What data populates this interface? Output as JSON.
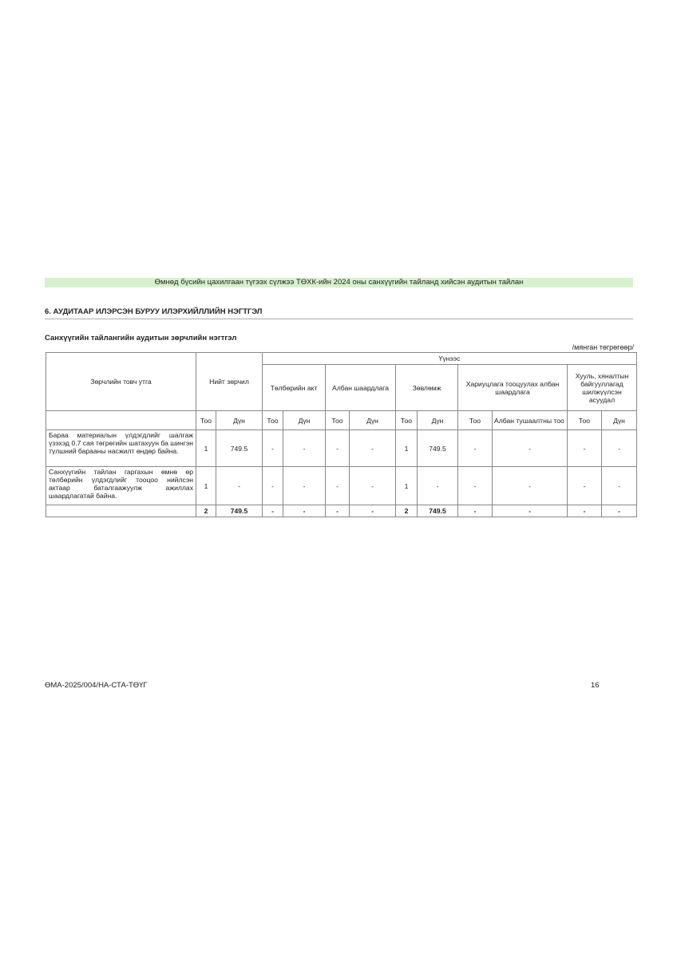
{
  "header": {
    "banner": "Өмнөд бүсийн цахилгаан түгээх сүлжээ ТӨХК-ийн 2024 оны санхүүгийн тайланд хийсэн аудитын тайлан"
  },
  "section_title": "6. АУДИТААР ИЛЭРСЭН БУРУУ ИЛЭРХИЙЛЛИЙН НЭГТГЭЛ",
  "table_title": "Санхүүгийн тайлангийн аудитын зөрчлийн нэгтгэл",
  "unit": "/мянган төгрөгөөр/",
  "table": {
    "col_desc": "Зөрчлийн товч утга",
    "col_total": "Нийт зөрчил",
    "col_source": "Үүнээс",
    "groups": [
      "Төлбөрийн акт",
      "Албан шаардлага",
      "Зөвлөмж",
      "Хариуцлага тооцуулах албан шаардлага",
      "Хууль, хяналтын байгууллагад шилжүүлсэн асуудал"
    ],
    "sub": [
      "Тоо",
      "Дүн",
      "Тоо",
      "Дүн",
      "Тоо",
      "Дүн",
      "Тоо",
      "Дүн",
      "Тоо",
      "Албан тушаалтны тоо",
      "Тоо",
      "Дүн"
    ],
    "rows": [
      {
        "desc": "Бараа материалын үлдэгдлийг шалгаж үзэхэд 0.7 сая төгрөгийн шатахуун ба шингэн түлшний барааны насжилт өндөр байна.",
        "cells": [
          "1",
          "749.5",
          "-",
          "-",
          "-",
          "-",
          "1",
          "749.5",
          "-",
          "-",
          "-",
          "-"
        ]
      },
      {
        "desc": "Санхүүгийн тайлан гаргахын өмнө өр төлбөрийн үлдэгдлийг тооцоо нийлсэн актаар баталгаажуулж ажиллах шаардлагатай байна.",
        "cells": [
          "1",
          "-",
          "-",
          "-",
          "-",
          "-",
          "1",
          "-",
          "-",
          "-",
          "-",
          "-"
        ]
      }
    ],
    "total": {
      "desc": "",
      "cells": [
        "2",
        "749.5",
        "-",
        "-",
        "-",
        "-",
        "2",
        "749.5",
        "-",
        "-",
        "-",
        "-"
      ]
    }
  },
  "footer": {
    "code": "ӨМА-2025/004/НА-СТА-ТӨҮГ",
    "page": "16"
  }
}
